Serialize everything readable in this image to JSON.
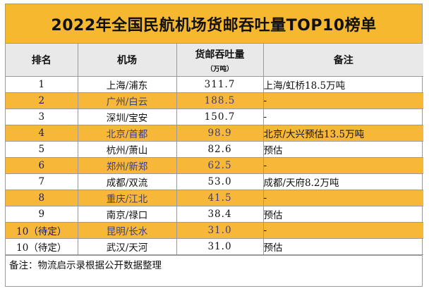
{
  "title": "2022年全国民航机场货邮吞吐量TOP10榜单",
  "headers": {
    "rank": "排名",
    "airport": "机场",
    "cargo": "货邮吞吐量",
    "cargo_unit": "（万吨）",
    "note": "备注"
  },
  "rows": [
    {
      "rank": "1",
      "airport": "上海/浦东",
      "cargo": "311.7",
      "note": "上海/虹桥18.5万吨"
    },
    {
      "rank": "2",
      "airport": "广州/白云",
      "cargo": "188.5",
      "note": "-"
    },
    {
      "rank": "3",
      "airport": "深圳/宝安",
      "cargo": "150.7",
      "note": "-"
    },
    {
      "rank": "4",
      "airport": "北京/首都",
      "cargo": "98.9",
      "note": "北京/大兴预估13.5万吨"
    },
    {
      "rank": "5",
      "airport": "杭州/萧山",
      "cargo": "82.6",
      "note": "预估"
    },
    {
      "rank": "6",
      "airport": "郑州/新郑",
      "cargo": "62.5",
      "note": "-"
    },
    {
      "rank": "7",
      "airport": "成都/双流",
      "cargo": "53.0",
      "note": "成都/天府8.2万吨"
    },
    {
      "rank": "8",
      "airport": "重庆/江北",
      "cargo": "41.5",
      "note": "-"
    },
    {
      "rank": "9",
      "airport": "南京/禄口",
      "cargo": "38.4",
      "note": "预估"
    },
    {
      "rank": "10（待定）",
      "airport": "昆明/长水",
      "cargo": "31.0",
      "note": "-"
    },
    {
      "rank": "10（待定）",
      "airport": "武汉/天河",
      "cargo": "31.0",
      "note": "预估"
    }
  ],
  "footer": "备注：物流启示录根据公开数据整理",
  "colors": {
    "title_bg": "#f5b82e",
    "highlight_row": "#f7b83a",
    "header_bg": "#e9e9e9"
  }
}
